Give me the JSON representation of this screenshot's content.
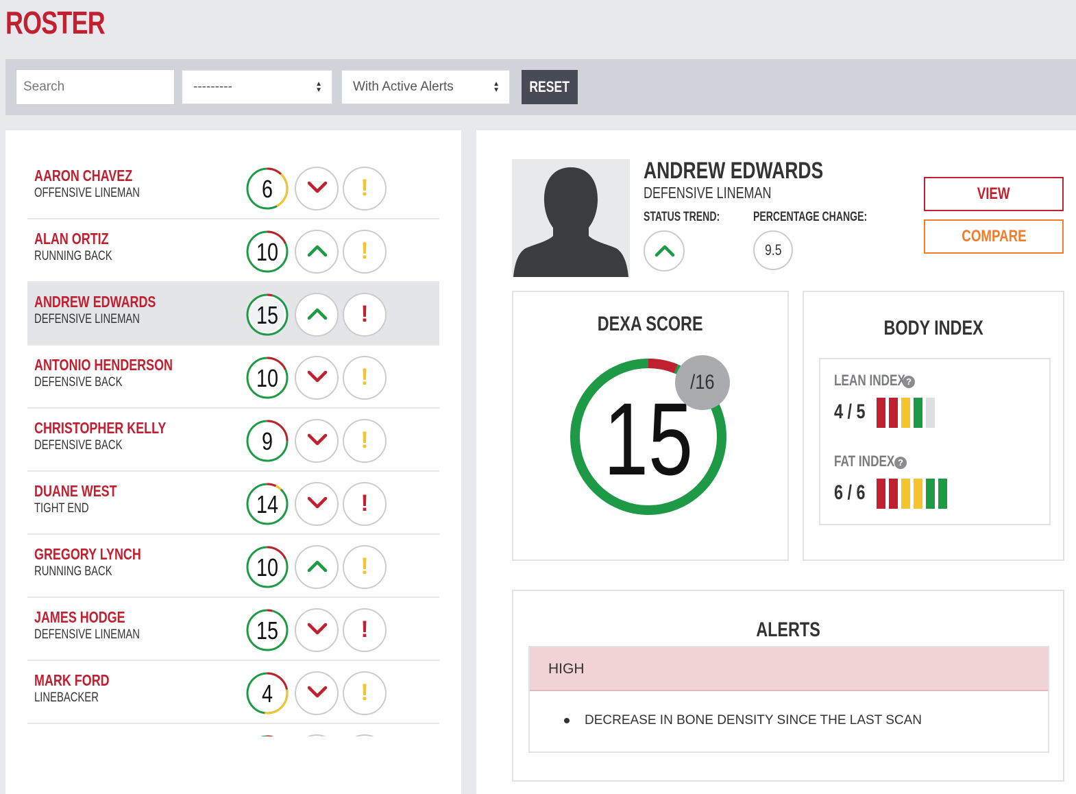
{
  "page": {
    "title": "ROSTER"
  },
  "filters": {
    "search_placeholder": "Search",
    "position_value": "---------",
    "alerts_value": "With Active Alerts",
    "reset_label": "RESET"
  },
  "roster": [
    {
      "name": "AARON CHAVEZ",
      "position": "OFFENSIVE LINEMAN",
      "score": "6",
      "trend": "down",
      "alert": "yellow"
    },
    {
      "name": "ALAN ORTIZ",
      "position": "RUNNING BACK",
      "score": "10",
      "trend": "up",
      "alert": "yellow"
    },
    {
      "name": "ANDREW EDWARDS",
      "position": "DEFENSIVE LINEMAN",
      "score": "15",
      "trend": "up",
      "alert": "red",
      "selected": true
    },
    {
      "name": "ANTONIO HENDERSON",
      "position": "DEFENSIVE BACK",
      "score": "10",
      "trend": "down",
      "alert": "yellow"
    },
    {
      "name": "CHRISTOPHER KELLY",
      "position": "DEFENSIVE BACK",
      "score": "9",
      "trend": "down",
      "alert": "yellow"
    },
    {
      "name": "DUANE WEST",
      "position": "TIGHT END",
      "score": "14",
      "trend": "down",
      "alert": "red"
    },
    {
      "name": "GREGORY LYNCH",
      "position": "RUNNING BACK",
      "score": "10",
      "trend": "up",
      "alert": "yellow"
    },
    {
      "name": "JAMES HODGE",
      "position": "DEFENSIVE LINEMAN",
      "score": "15",
      "trend": "down",
      "alert": "red"
    },
    {
      "name": "MARK FORD",
      "position": "LINEBACKER",
      "score": "4",
      "trend": "down",
      "alert": "yellow"
    },
    {
      "name": "",
      "position": "",
      "score": "",
      "trend": "down",
      "alert": "yellow"
    }
  ],
  "detail": {
    "name": "ANDREW EDWARDS",
    "position": "DEFENSIVE LINEMAN",
    "status_trend_label": "STATUS TREND:",
    "status_trend": "up",
    "pct_change_label": "PERCENTAGE CHANGE:",
    "pct_change": "9.5",
    "view_label": "VIEW",
    "compare_label": "COMPARE",
    "dexa": {
      "title": "DEXA SCORE",
      "score": "15",
      "total": "/16"
    },
    "body_index": {
      "title": "BODY INDEX",
      "lean": {
        "label": "LEAN INDEX",
        "score": "4 / 5",
        "bars": [
          "#c0202f",
          "#c0202f",
          "#f4c430",
          "#1e9a46",
          "#dcdee1"
        ]
      },
      "fat": {
        "label": "FAT INDEX",
        "score": "6 / 6",
        "bars": [
          "#c0202f",
          "#c0202f",
          "#f4c430",
          "#f4c430",
          "#1e9a46",
          "#1e9a46"
        ]
      }
    },
    "alerts": {
      "title": "ALERTS",
      "level": "HIGH",
      "items": [
        "DECREASE IN BONE DENSITY SINCE THE LAST SCAN"
      ]
    }
  },
  "colors": {
    "brand_red": "#c0202f",
    "green": "#1e9a46",
    "yellow": "#f4c430",
    "orange": "#f07d2b"
  }
}
